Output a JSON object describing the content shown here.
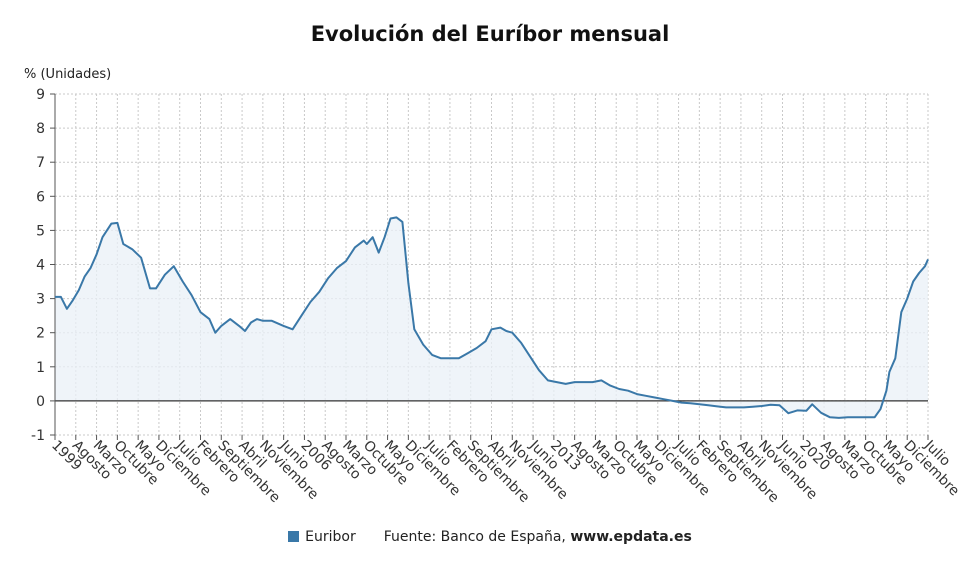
{
  "chart_data": {
    "type": "area",
    "title": "Evolución del Euríbor mensual",
    "ylabel": "% (Unidades)",
    "ylim": [
      -1,
      9
    ],
    "yticks": [
      -1,
      0,
      1,
      2,
      3,
      4,
      5,
      6,
      7,
      8,
      9
    ],
    "grid": true,
    "legend": "bottom",
    "series": [
      {
        "name": "Euribor",
        "color": "#3a78a8",
        "points": [
          [
            "1999-01",
            3.05
          ],
          [
            "1999-03",
            3.05
          ],
          [
            "1999-05",
            2.7
          ],
          [
            "1999-07",
            2.95
          ],
          [
            "1999-09",
            3.25
          ],
          [
            "1999-11",
            3.65
          ],
          [
            "2000-01",
            3.9
          ],
          [
            "2000-03",
            4.3
          ],
          [
            "2000-05",
            4.8
          ],
          [
            "2000-08",
            5.2
          ],
          [
            "2000-10",
            5.22
          ],
          [
            "2000-12",
            4.6
          ],
          [
            "2001-03",
            4.45
          ],
          [
            "2001-06",
            4.2
          ],
          [
            "2001-09",
            3.3
          ],
          [
            "2001-11",
            3.3
          ],
          [
            "2002-02",
            3.7
          ],
          [
            "2002-05",
            3.95
          ],
          [
            "2002-08",
            3.5
          ],
          [
            "2002-11",
            3.1
          ],
          [
            "2003-02",
            2.6
          ],
          [
            "2003-05",
            2.4
          ],
          [
            "2003-07",
            2.0
          ],
          [
            "2003-09",
            2.2
          ],
          [
            "2003-12",
            2.4
          ],
          [
            "2004-03",
            2.2
          ],
          [
            "2004-05",
            2.05
          ],
          [
            "2004-07",
            2.3
          ],
          [
            "2004-09",
            2.4
          ],
          [
            "2004-11",
            2.35
          ],
          [
            "2005-02",
            2.35
          ],
          [
            "2005-06",
            2.2
          ],
          [
            "2005-09",
            2.1
          ],
          [
            "2005-12",
            2.5
          ],
          [
            "2006-03",
            2.9
          ],
          [
            "2006-06",
            3.2
          ],
          [
            "2006-09",
            3.6
          ],
          [
            "2006-12",
            3.9
          ],
          [
            "2007-03",
            4.1
          ],
          [
            "2007-06",
            4.5
          ],
          [
            "2007-09",
            4.7
          ],
          [
            "2007-10",
            4.6
          ],
          [
            "2007-12",
            4.8
          ],
          [
            "2008-02",
            4.35
          ],
          [
            "2008-04",
            4.8
          ],
          [
            "2008-06",
            5.35
          ],
          [
            "2008-08",
            5.38
          ],
          [
            "2008-10",
            5.25
          ],
          [
            "2008-12",
            3.45
          ],
          [
            "2009-02",
            2.1
          ],
          [
            "2009-05",
            1.65
          ],
          [
            "2009-08",
            1.35
          ],
          [
            "2009-11",
            1.25
          ],
          [
            "2010-02",
            1.25
          ],
          [
            "2010-05",
            1.25
          ],
          [
            "2010-08",
            1.4
          ],
          [
            "2010-11",
            1.55
          ],
          [
            "2011-02",
            1.75
          ],
          [
            "2011-04",
            2.1
          ],
          [
            "2011-07",
            2.15
          ],
          [
            "2011-09",
            2.05
          ],
          [
            "2011-11",
            2.0
          ],
          [
            "2012-02",
            1.7
          ],
          [
            "2012-05",
            1.3
          ],
          [
            "2012-08",
            0.9
          ],
          [
            "2012-11",
            0.6
          ],
          [
            "2013-02",
            0.55
          ],
          [
            "2013-05",
            0.5
          ],
          [
            "2013-08",
            0.55
          ],
          [
            "2013-11",
            0.55
          ],
          [
            "2014-02",
            0.55
          ],
          [
            "2014-05",
            0.6
          ],
          [
            "2014-08",
            0.45
          ],
          [
            "2014-11",
            0.35
          ],
          [
            "2015-02",
            0.3
          ],
          [
            "2015-05",
            0.2
          ],
          [
            "2015-08",
            0.15
          ],
          [
            "2015-11",
            0.1
          ],
          [
            "2016-02",
            0.05
          ],
          [
            "2016-05",
            0.0
          ],
          [
            "2016-08",
            -0.05
          ],
          [
            "2016-11",
            -0.07
          ],
          [
            "2017-02",
            -0.1
          ],
          [
            "2017-05",
            -0.13
          ],
          [
            "2017-08",
            -0.16
          ],
          [
            "2017-11",
            -0.19
          ],
          [
            "2018-02",
            -0.19
          ],
          [
            "2018-05",
            -0.19
          ],
          [
            "2018-08",
            -0.17
          ],
          [
            "2018-11",
            -0.15
          ],
          [
            "2019-02",
            -0.11
          ],
          [
            "2019-05",
            -0.13
          ],
          [
            "2019-08",
            -0.36
          ],
          [
            "2019-11",
            -0.28
          ],
          [
            "2020-02",
            -0.29
          ],
          [
            "2020-04",
            -0.1
          ],
          [
            "2020-07",
            -0.35
          ],
          [
            "2020-10",
            -0.48
          ],
          [
            "2021-01",
            -0.5
          ],
          [
            "2021-04",
            -0.48
          ],
          [
            "2021-07",
            -0.48
          ],
          [
            "2021-10",
            -0.48
          ],
          [
            "2022-01",
            -0.48
          ],
          [
            "2022-03",
            -0.24
          ],
          [
            "2022-05",
            0.3
          ],
          [
            "2022-06",
            0.85
          ],
          [
            "2022-08",
            1.25
          ],
          [
            "2022-10",
            2.6
          ],
          [
            "2022-12",
            3.0
          ],
          [
            "2023-02",
            3.5
          ],
          [
            "2023-04",
            3.75
          ],
          [
            "2023-06",
            3.95
          ],
          [
            "2023-07",
            4.15
          ]
        ]
      }
    ],
    "x_tick_labels": [
      "1999",
      "Agosto",
      "Marzo",
      "Octubre",
      "Mayo",
      "Diciembre",
      "Julio",
      "Febrero",
      "Septiembre",
      "Abril",
      "Noviembre",
      "Junio",
      "2006",
      "Agosto",
      "Marzo",
      "Octubre",
      "Mayo",
      "Diciembre",
      "Julio",
      "Febrero",
      "Septiembre",
      "Abril",
      "Noviembre",
      "Junio",
      "2013",
      "Agosto",
      "Marzo",
      "Octubre",
      "Mayo",
      "Diciembre",
      "Julio",
      "Febrero",
      "Septiembre",
      "Abril",
      "Noviembre",
      "Junio",
      "2020",
      "Agosto",
      "Marzo",
      "Octubre",
      "Mayo",
      "Diciembre",
      "Julio"
    ]
  },
  "legend": {
    "series_name": "Euribor",
    "source_prefix": "Fuente: Banco de España, ",
    "source_site": "www.epdata.es"
  }
}
